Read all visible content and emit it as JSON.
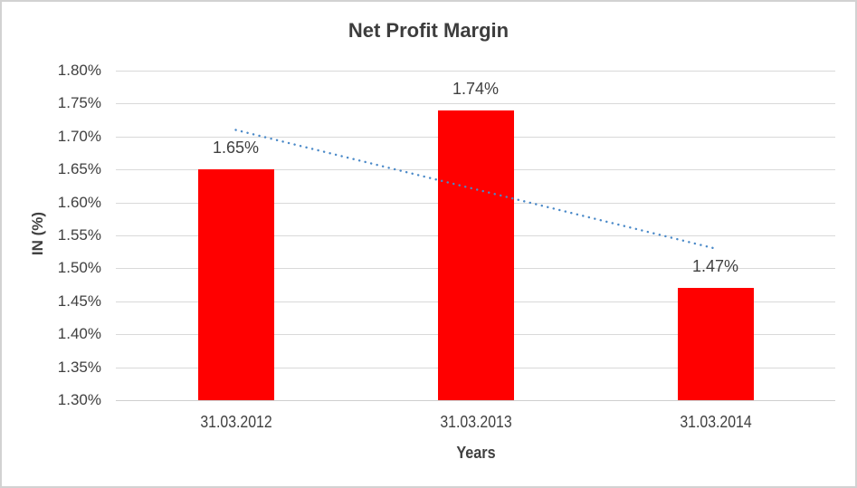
{
  "chart": {
    "title": "Net Profit Margin",
    "y_axis_title": "IN (%)",
    "x_axis_title": "Years"
  },
  "chart_data": {
    "type": "bar",
    "title": "Net Profit Margin",
    "categories": [
      "31.03.2012",
      "31.03.2013",
      "31.03.2014"
    ],
    "values": [
      1.65,
      1.74,
      1.47
    ],
    "data_labels": [
      "1.65%",
      "1.74%",
      "1.47%"
    ],
    "xlabel": "Years",
    "ylabel": "IN (%)",
    "ylim": [
      1.3,
      1.8
    ],
    "ytick_step": 0.05,
    "ytick_labels": [
      "1.80%",
      "1.75%",
      "1.70%",
      "1.65%",
      "1.60%",
      "1.55%",
      "1.50%",
      "1.45%",
      "1.40%",
      "1.35%",
      "1.30%"
    ],
    "grid": true,
    "legend": "none",
    "bar_color": "#ff0000",
    "text_color": "#404040",
    "gridline_color": "#d9d9d9",
    "background_color": "#ffffff",
    "border_color": "#d2d2d2",
    "trendline": {
      "type": "linear",
      "style": "dotted",
      "color": "#4a89c8",
      "start_value": 1.71,
      "end_value": 1.53
    }
  }
}
